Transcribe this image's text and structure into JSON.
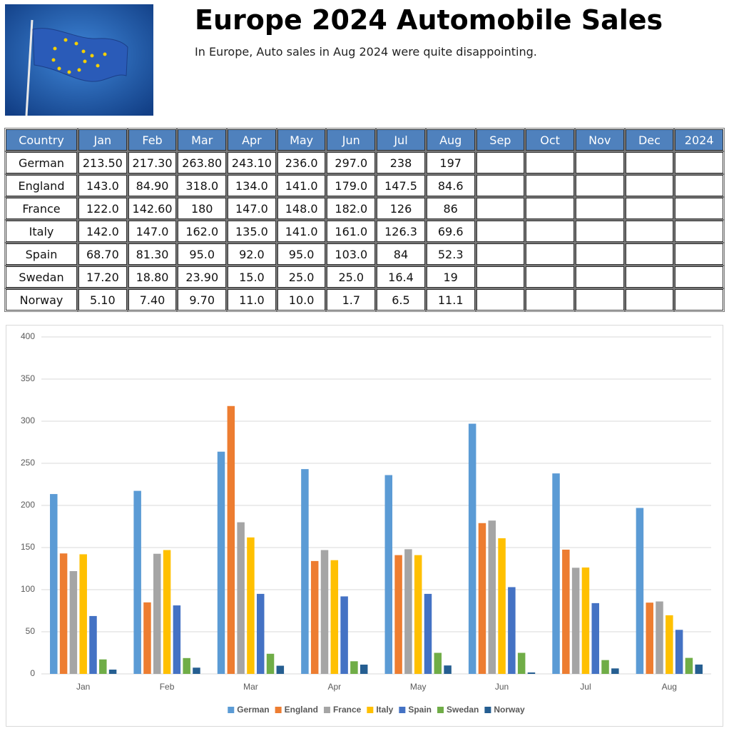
{
  "header": {
    "title": "Europe 2024 Automobile Sales",
    "subtitle": "In Europe, Auto sales in Aug 2024 were quite disappointing."
  },
  "table": {
    "header": [
      "Country",
      "Jan",
      "Feb",
      "Mar",
      "Apr",
      "May",
      "Jun",
      "Jul",
      "Aug",
      "Sep",
      "Oct",
      "Nov",
      "Dec",
      "2024"
    ],
    "rows": [
      [
        "German",
        "213.50",
        "217.30",
        "263.80",
        "243.10",
        "236.0",
        "297.0",
        "238",
        "197"
      ],
      [
        "England",
        "143.0",
        "84.90",
        "318.0",
        "134.0",
        "141.0",
        "179.0",
        "147.5",
        "84.6"
      ],
      [
        "France",
        "122.0",
        "142.60",
        "180",
        "147.0",
        "148.0",
        "182.0",
        "126",
        "86"
      ],
      [
        "Italy",
        "142.0",
        "147.0",
        "162.0",
        "135.0",
        "141.0",
        "161.0",
        "126.3",
        "69.6"
      ],
      [
        "Spain",
        "68.70",
        "81.30",
        "95.0",
        "92.0",
        "95.0",
        "103.0",
        "84",
        "52.3"
      ],
      [
        "Swedan",
        "17.20",
        "18.80",
        "23.90",
        "15.0",
        "25.0",
        "25.0",
        "16.4",
        "19"
      ],
      [
        "Norway",
        "5.10",
        "7.40",
        "9.70",
        "11.0",
        "10.0",
        "1.7",
        "6.5",
        "11.1"
      ]
    ]
  },
  "chart_data": {
    "type": "bar",
    "categories": [
      "Jan",
      "Feb",
      "Mar",
      "Apr",
      "May",
      "Jun",
      "Jul",
      "Aug"
    ],
    "series": [
      {
        "name": "German",
        "color": "#5b9bd5",
        "values": [
          213.5,
          217.3,
          263.8,
          243.1,
          236,
          297,
          238,
          197
        ]
      },
      {
        "name": "England",
        "color": "#ed7d31",
        "values": [
          143,
          84.9,
          318,
          134,
          141,
          179,
          147.5,
          84.6
        ]
      },
      {
        "name": "France",
        "color": "#a5a5a5",
        "values": [
          122,
          142.6,
          180,
          147,
          148,
          182,
          126,
          86
        ]
      },
      {
        "name": "Italy",
        "color": "#ffc000",
        "values": [
          142,
          147,
          162,
          135,
          141,
          161,
          126.3,
          69.6
        ]
      },
      {
        "name": "Spain",
        "color": "#4472c4",
        "values": [
          68.7,
          81.3,
          95,
          92,
          95,
          103,
          84,
          52.3
        ]
      },
      {
        "name": "Swedan",
        "color": "#70ad47",
        "values": [
          17.2,
          18.8,
          23.9,
          15,
          25,
          25,
          16.4,
          19
        ]
      },
      {
        "name": "Norway",
        "color": "#255e91",
        "values": [
          5.1,
          7.4,
          9.7,
          11,
          10,
          1.7,
          6.5,
          11.1
        ]
      }
    ],
    "ylim": [
      0,
      400
    ],
    "yticks": [
      0,
      50,
      100,
      150,
      200,
      250,
      300,
      350,
      400
    ],
    "grid": true,
    "legend": "bottom"
  }
}
